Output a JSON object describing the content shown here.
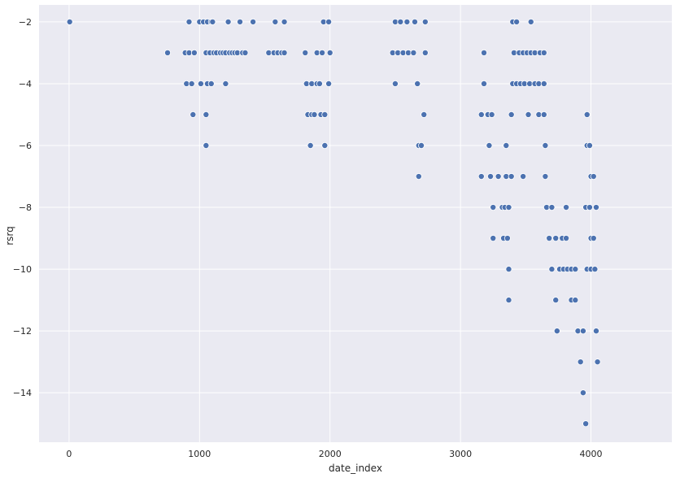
{
  "chart_data": {
    "type": "scatter",
    "title": "",
    "xlabel": "date_index",
    "ylabel": "rsrq",
    "xlim": [
      -230,
      4620
    ],
    "ylim": [
      -15.6,
      -1.45
    ],
    "xticks": [
      0,
      1000,
      2000,
      3000,
      4000
    ],
    "yticks": [
      -2,
      -4,
      -6,
      -8,
      -10,
      -12,
      -14
    ],
    "grid": true,
    "background": "#eaeaf2",
    "grid_color": "#ffffff",
    "marker_color": "#4c72b0",
    "marker_edge": "#ffffff",
    "points": [
      [
        5,
        -2
      ],
      [
        920,
        -2
      ],
      [
        1000,
        -2
      ],
      [
        1030,
        -2
      ],
      [
        1060,
        -2
      ],
      [
        1090,
        -2
      ],
      [
        1100,
        -2
      ],
      [
        1220,
        -2
      ],
      [
        1310,
        -2
      ],
      [
        1410,
        -2
      ],
      [
        1580,
        -2
      ],
      [
        1650,
        -2
      ],
      [
        1950,
        -2
      ],
      [
        1990,
        -2
      ],
      [
        2500,
        -2
      ],
      [
        2540,
        -2
      ],
      [
        2590,
        -2
      ],
      [
        2650,
        -2
      ],
      [
        2730,
        -2
      ],
      [
        3400,
        -2
      ],
      [
        3430,
        -2
      ],
      [
        3540,
        -2
      ],
      [
        755,
        -3
      ],
      [
        890,
        -3
      ],
      [
        920,
        -3
      ],
      [
        960,
        -3
      ],
      [
        1050,
        -3
      ],
      [
        1080,
        -3
      ],
      [
        1110,
        -3
      ],
      [
        1130,
        -3
      ],
      [
        1160,
        -3
      ],
      [
        1180,
        -3
      ],
      [
        1200,
        -3
      ],
      [
        1230,
        -3
      ],
      [
        1250,
        -3
      ],
      [
        1270,
        -3
      ],
      [
        1290,
        -3
      ],
      [
        1330,
        -3
      ],
      [
        1350,
        -3
      ],
      [
        1530,
        -3
      ],
      [
        1570,
        -3
      ],
      [
        1600,
        -3
      ],
      [
        1630,
        -3
      ],
      [
        1650,
        -3
      ],
      [
        1810,
        -3
      ],
      [
        1900,
        -3
      ],
      [
        1940,
        -3
      ],
      [
        2000,
        -3
      ],
      [
        2480,
        -3
      ],
      [
        2520,
        -3
      ],
      [
        2560,
        -3
      ],
      [
        2600,
        -3
      ],
      [
        2640,
        -3
      ],
      [
        2730,
        -3
      ],
      [
        3180,
        -3
      ],
      [
        3410,
        -3
      ],
      [
        3450,
        -3
      ],
      [
        3480,
        -3
      ],
      [
        3510,
        -3
      ],
      [
        3540,
        -3
      ],
      [
        3570,
        -3
      ],
      [
        3610,
        -3
      ],
      [
        3640,
        -3
      ],
      [
        900,
        -4
      ],
      [
        940,
        -4
      ],
      [
        1010,
        -4
      ],
      [
        1060,
        -4
      ],
      [
        1090,
        -4
      ],
      [
        1200,
        -4
      ],
      [
        1820,
        -4
      ],
      [
        1860,
        -4
      ],
      [
        1900,
        -4
      ],
      [
        1920,
        -4
      ],
      [
        1990,
        -4
      ],
      [
        2500,
        -4
      ],
      [
        2670,
        -4
      ],
      [
        3180,
        -4
      ],
      [
        3400,
        -4
      ],
      [
        3430,
        -4
      ],
      [
        3460,
        -4
      ],
      [
        3490,
        -4
      ],
      [
        3530,
        -4
      ],
      [
        3570,
        -4
      ],
      [
        3600,
        -4
      ],
      [
        3640,
        -4
      ],
      [
        950,
        -5
      ],
      [
        1050,
        -5
      ],
      [
        1830,
        -5
      ],
      [
        1860,
        -5
      ],
      [
        1880,
        -5
      ],
      [
        1930,
        -5
      ],
      [
        1960,
        -5
      ],
      [
        2720,
        -5
      ],
      [
        3160,
        -5
      ],
      [
        3210,
        -5
      ],
      [
        3240,
        -5
      ],
      [
        3390,
        -5
      ],
      [
        3520,
        -5
      ],
      [
        3600,
        -5
      ],
      [
        3640,
        -5
      ],
      [
        3970,
        -5
      ],
      [
        1050,
        -6
      ],
      [
        1850,
        -6
      ],
      [
        1960,
        -6
      ],
      [
        2680,
        -6
      ],
      [
        2700,
        -6
      ],
      [
        3220,
        -6
      ],
      [
        3350,
        -6
      ],
      [
        3650,
        -6
      ],
      [
        3970,
        -6
      ],
      [
        3990,
        -6
      ],
      [
        2680,
        -7
      ],
      [
        3160,
        -7
      ],
      [
        3230,
        -7
      ],
      [
        3290,
        -7
      ],
      [
        3350,
        -7
      ],
      [
        3390,
        -7
      ],
      [
        3480,
        -7
      ],
      [
        3650,
        -7
      ],
      [
        4000,
        -7
      ],
      [
        4020,
        -7
      ],
      [
        3250,
        -8
      ],
      [
        3320,
        -8
      ],
      [
        3340,
        -8
      ],
      [
        3370,
        -8
      ],
      [
        3660,
        -8
      ],
      [
        3700,
        -8
      ],
      [
        3810,
        -8
      ],
      [
        3960,
        -8
      ],
      [
        3990,
        -8
      ],
      [
        4040,
        -8
      ],
      [
        3250,
        -9
      ],
      [
        3330,
        -9
      ],
      [
        3360,
        -9
      ],
      [
        3680,
        -9
      ],
      [
        3730,
        -9
      ],
      [
        3780,
        -9
      ],
      [
        3810,
        -9
      ],
      [
        4000,
        -9
      ],
      [
        4020,
        -9
      ],
      [
        3370,
        -10
      ],
      [
        3700,
        -10
      ],
      [
        3760,
        -10
      ],
      [
        3790,
        -10
      ],
      [
        3820,
        -10
      ],
      [
        3850,
        -10
      ],
      [
        3880,
        -10
      ],
      [
        3970,
        -10
      ],
      [
        4000,
        -10
      ],
      [
        4030,
        -10
      ],
      [
        3370,
        -11
      ],
      [
        3730,
        -11
      ],
      [
        3850,
        -11
      ],
      [
        3880,
        -11
      ],
      [
        3740,
        -12
      ],
      [
        3900,
        -12
      ],
      [
        3940,
        -12
      ],
      [
        4040,
        -12
      ],
      [
        3920,
        -13
      ],
      [
        4050,
        -13
      ],
      [
        3940,
        -14
      ],
      [
        3960,
        -15
      ]
    ]
  }
}
